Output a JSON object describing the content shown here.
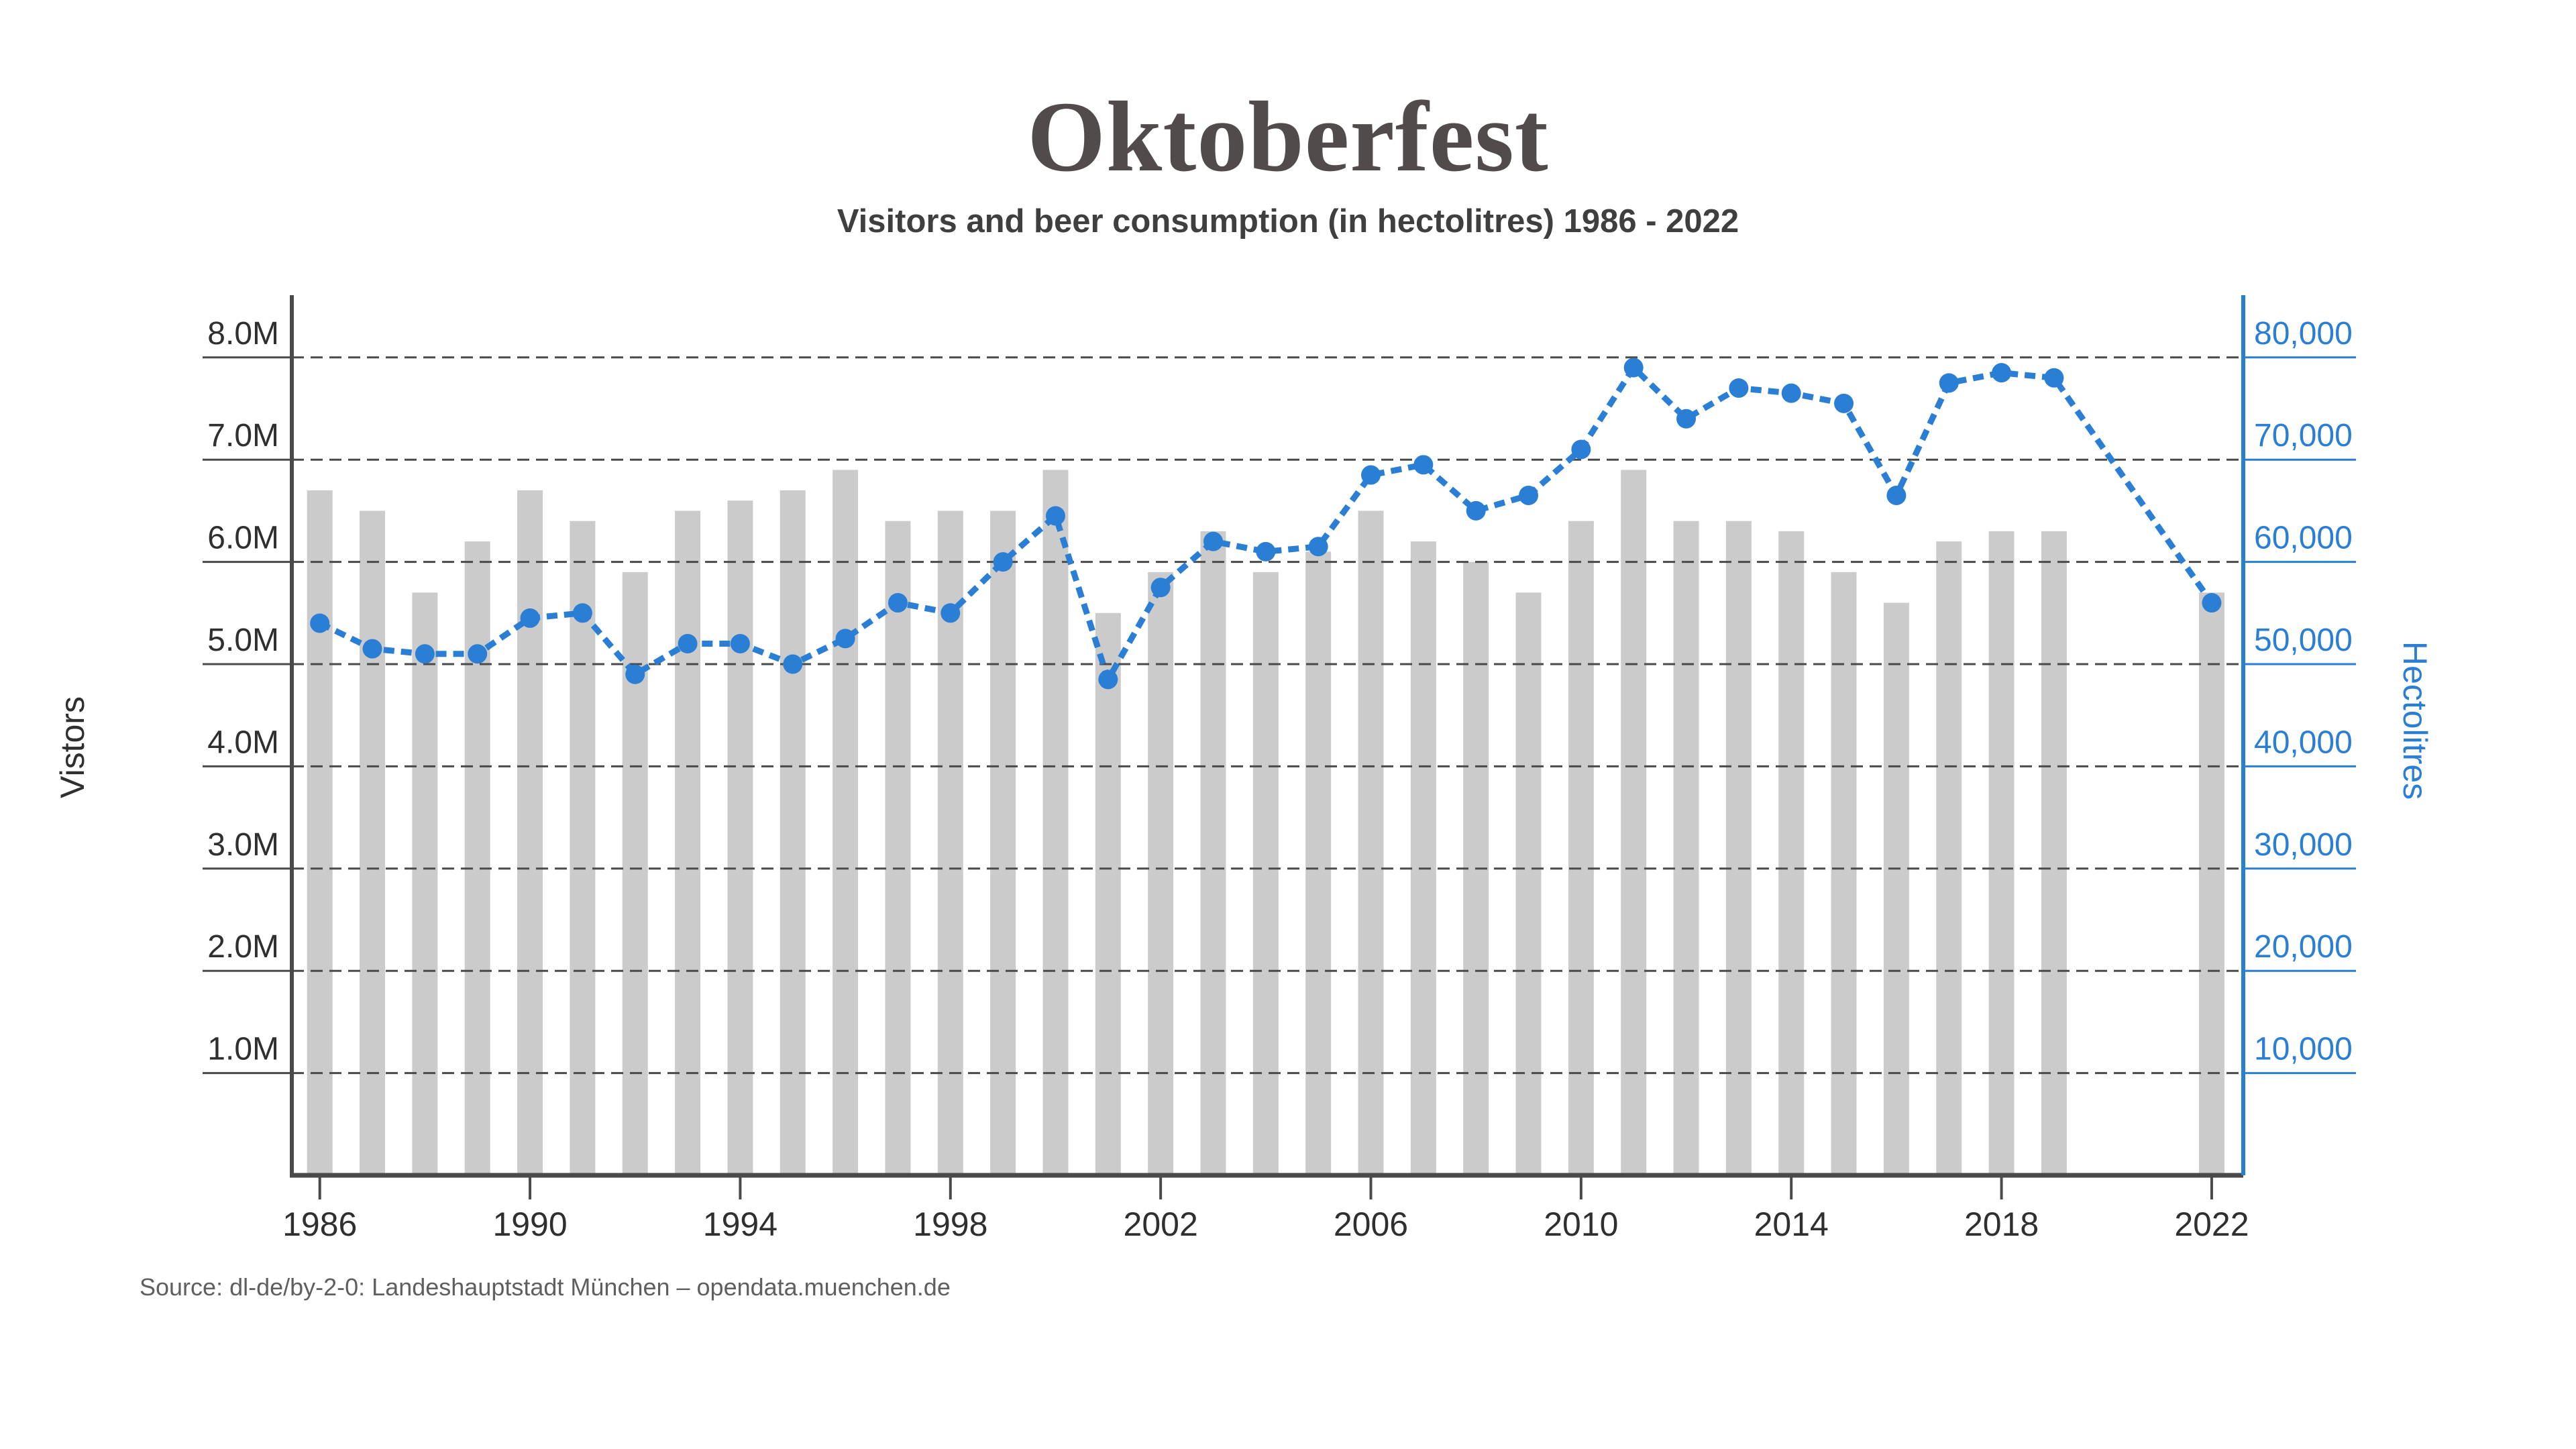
{
  "title": "Oktoberfest",
  "subtitle": "Visitors and beer consumption (in hectolitres) 1986 - 2022",
  "source": "Source: dl-de/by-2-0: Landeshauptstadt München – opendata.muenchen.de",
  "colors": {
    "accent_blue": "#2a7fd4",
    "bar_gray": "#cbcbcb",
    "grid": "#4a4a4a",
    "axis_dark": "#4a4a4a",
    "text_dark": "#2f2f2f",
    "title_color": "#514b4b",
    "subtitle_color": "#3f3f3f",
    "source_color": "#5f5f5f"
  },
  "left_axis": {
    "title": "Vistors",
    "tick_labels": [
      "1.0M",
      "2.0M",
      "3.0M",
      "4.0M",
      "5.0M",
      "6.0M",
      "7.0M",
      "8.0M"
    ],
    "tick_values": [
      1,
      2,
      3,
      4,
      5,
      6,
      7,
      8
    ]
  },
  "right_axis": {
    "title": "Hectolitres",
    "tick_labels": [
      "10,000",
      "20,000",
      "30,000",
      "40,000",
      "50,000",
      "60,000",
      "70,000",
      "80,000"
    ],
    "tick_values": [
      10000,
      20000,
      30000,
      40000,
      50000,
      60000,
      70000,
      80000
    ]
  },
  "x_axis": {
    "tick_years": [
      1986,
      1990,
      1994,
      1998,
      2002,
      2006,
      2010,
      2014,
      2018,
      2022
    ]
  },
  "chart_data": {
    "type": "combo",
    "title": "Oktoberfest — Visitors and beer consumption (in hectolitres) 1986 - 2022",
    "x": [
      1986,
      1987,
      1988,
      1989,
      1990,
      1991,
      1992,
      1993,
      1994,
      1995,
      1996,
      1997,
      1998,
      1999,
      2000,
      2001,
      2002,
      2003,
      2004,
      2005,
      2006,
      2007,
      2008,
      2009,
      2010,
      2011,
      2012,
      2013,
      2014,
      2015,
      2016,
      2017,
      2018,
      2019,
      2022
    ],
    "note_missing_years": [
      2020,
      2021
    ],
    "series": [
      {
        "name": "Visitors",
        "type": "bar",
        "axis": "left",
        "unit": "millions",
        "values": [
          6.7,
          6.5,
          5.7,
          6.2,
          6.7,
          6.4,
          5.9,
          6.5,
          6.6,
          6.7,
          6.9,
          6.4,
          6.5,
          6.5,
          6.9,
          5.5,
          5.9,
          6.3,
          5.9,
          6.1,
          6.5,
          6.2,
          6.0,
          5.7,
          6.4,
          6.9,
          6.4,
          6.4,
          6.3,
          5.9,
          5.6,
          6.2,
          6.3,
          6.3,
          5.7
        ]
      },
      {
        "name": "Beer consumption",
        "type": "line",
        "axis": "right",
        "unit": "hectolitres",
        "values": [
          54000,
          51500,
          51000,
          51000,
          54500,
          55000,
          49000,
          52000,
          52000,
          50000,
          52500,
          56000,
          55000,
          60000,
          64500,
          48500,
          57500,
          62000,
          61000,
          61500,
          68500,
          69500,
          65000,
          66500,
          71000,
          79000,
          74000,
          77000,
          76500,
          75500,
          66500,
          77500,
          78500,
          78000,
          56000
        ]
      }
    ],
    "left_ylim": [
      0,
      8.6
    ],
    "right_ylim": [
      0,
      86000
    ],
    "grid": true,
    "legend": false
  }
}
